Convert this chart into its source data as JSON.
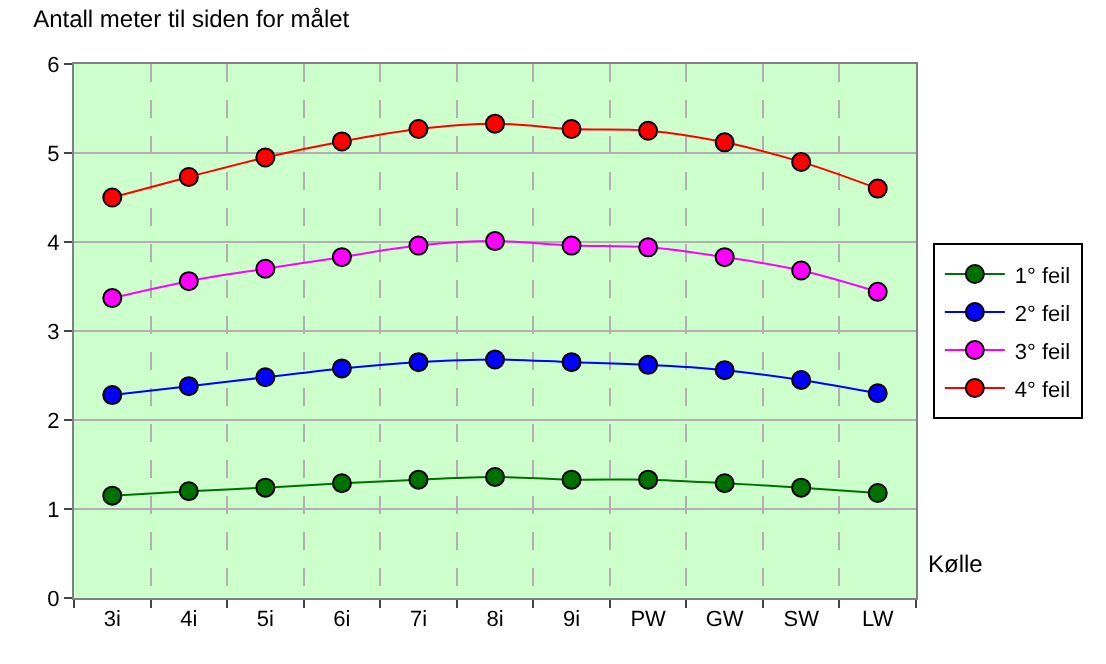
{
  "chart_data": {
    "type": "line",
    "title": "Antall meter til siden for målet",
    "xlabel": "Kølle",
    "categories": [
      "3i",
      "4i",
      "5i",
      "6i",
      "7i",
      "8i",
      "9i",
      "PW",
      "GW",
      "SW",
      "LW"
    ],
    "series": [
      {
        "name": "1° feil",
        "color": "#007000",
        "values": [
          1.15,
          1.2,
          1.24,
          1.29,
          1.33,
          1.36,
          1.33,
          1.33,
          1.29,
          1.24,
          1.18
        ]
      },
      {
        "name": "2° feil",
        "color": "#0000ff",
        "values": [
          2.28,
          2.38,
          2.48,
          2.58,
          2.65,
          2.68,
          2.65,
          2.62,
          2.56,
          2.45,
          2.3
        ]
      },
      {
        "name": "3° feil",
        "color": "#ff00ff",
        "values": [
          3.37,
          3.56,
          3.7,
          3.83,
          3.96,
          4.01,
          3.96,
          3.94,
          3.83,
          3.68,
          3.44
        ]
      },
      {
        "name": "4° feil",
        "color": "#ff0000",
        "values": [
          4.5,
          4.73,
          4.95,
          5.13,
          5.27,
          5.33,
          5.27,
          5.25,
          5.12,
          4.9,
          4.6
        ]
      }
    ],
    "ylim": [
      0,
      6
    ],
    "yticks": [
      0,
      1,
      2,
      3,
      4,
      5,
      6
    ],
    "grid": true,
    "legend": "right",
    "marker": "circle",
    "line_style": "solid"
  }
}
